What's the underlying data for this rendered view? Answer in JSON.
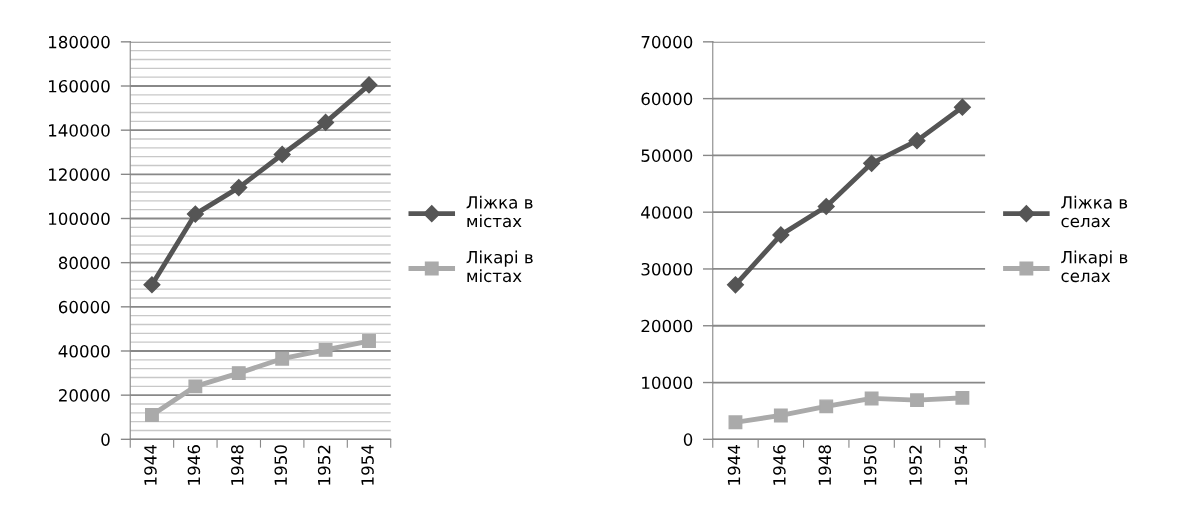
{
  "chart_data": [
    {
      "type": "line",
      "categories": [
        "1944",
        "1946",
        "1948",
        "1950",
        "1952",
        "1954"
      ],
      "series": [
        {
          "name": "Ліжка в містах",
          "color": "#555555",
          "values": [
            70000,
            102000,
            114000,
            129000,
            143500,
            160500
          ],
          "marker": "diamond"
        },
        {
          "name": "Лікарі в містах",
          "color": "#aaaaaa",
          "values": [
            11000,
            24000,
            30000,
            36500,
            40500,
            44500
          ],
          "marker": "square"
        }
      ],
      "ylim": [
        0,
        180000
      ],
      "yticks": [
        0,
        {
          "value": 4000,
          "label": null
        },
        {
          "value": 8000,
          "label": null
        },
        {
          "value": 12000,
          "label": null
        },
        {
          "value": 16000,
          "label": null
        },
        20000,
        {
          "value": 24000,
          "label": null
        },
        {
          "value": 28000,
          "label": null
        },
        {
          "value": 32000,
          "label": null
        },
        {
          "value": 36000,
          "label": null
        },
        40000,
        {
          "value": 44000,
          "label": null
        },
        {
          "value": 48000,
          "label": null
        },
        {
          "value": 52000,
          "label": null
        },
        {
          "value": 56000,
          "label": null
        },
        60000,
        {
          "value": 64000,
          "label": null
        },
        {
          "value": 68000,
          "label": null
        },
        {
          "value": 72000,
          "label": null
        },
        {
          "value": 76000,
          "label": null
        },
        80000,
        {
          "value": 84000,
          "label": null
        },
        {
          "value": 88000,
          "label": null
        },
        {
          "value": 92000,
          "label": null
        },
        {
          "value": 96000,
          "label": null
        },
        100000,
        {
          "value": 104000,
          "label": null
        },
        {
          "value": 108000,
          "label": null
        },
        {
          "value": 112000,
          "label": null
        },
        {
          "value": 116000,
          "label": null
        },
        120000,
        {
          "value": 124000,
          "label": null
        },
        {
          "value": 128000,
          "label": null
        },
        {
          "value": 132000,
          "label": null
        },
        {
          "value": 136000,
          "label": null
        },
        140000,
        {
          "value": 144000,
          "label": null
        },
        {
          "value": 148000,
          "label": null
        },
        {
          "value": 152000,
          "label": null
        },
        {
          "value": 156000,
          "label": null
        },
        160000,
        {
          "value": 164000,
          "label": null
        },
        {
          "value": 168000,
          "label": null
        },
        {
          "value": 172000,
          "label": null
        },
        {
          "value": 176000,
          "label": null
        },
        180000
      ],
      "grid": "y",
      "legend": "right",
      "line_style": "solid"
    },
    {
      "type": "line",
      "categories": [
        "1944",
        "1946",
        "1948",
        "1950",
        "1952",
        "1954"
      ],
      "series": [
        {
          "name": "Ліжка в селах",
          "color": "#555555",
          "values": [
            27200,
            36000,
            41000,
            48600,
            52600,
            58500
          ],
          "marker": "diamond"
        },
        {
          "name": "Лікарі в селах",
          "color": "#aaaaaa",
          "values": [
            3000,
            4200,
            5800,
            7200,
            6900,
            7300
          ],
          "marker": "square"
        }
      ],
      "ylim": [
        0,
        70000
      ],
      "yticks": [
        0,
        10000,
        20000,
        30000,
        40000,
        50000,
        60000,
        70000
      ],
      "grid": "y",
      "legend": "right",
      "line_style": "solid"
    }
  ]
}
